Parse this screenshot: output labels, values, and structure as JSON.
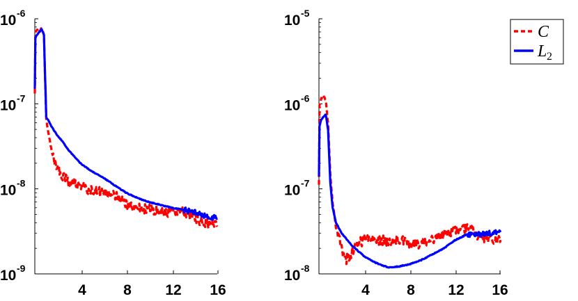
{
  "chart_data": [
    {
      "type": "line",
      "title": "",
      "xlabel": "",
      "ylabel": "",
      "yscale": "log",
      "xlim": [
        0,
        16
      ],
      "ylim": [
        1e-09,
        1e-06
      ],
      "x_ticks": [
        "4",
        "8",
        "12",
        "16"
      ],
      "y_ticks": [
        {
          "base": "10",
          "exp": "-9"
        },
        {
          "base": "10",
          "exp": "-8"
        },
        {
          "base": "10",
          "exp": "-7"
        },
        {
          "base": "10",
          "exp": "-6"
        }
      ],
      "series": [
        {
          "name": "C",
          "color": "#ff0000",
          "style": "dashed",
          "x": [
            0.0,
            0.05,
            0.2,
            0.4,
            0.6,
            0.8,
            1.0,
            1.2,
            1.5,
            2.0,
            2.5,
            3.0,
            4.0,
            5.0,
            6.0,
            7.0,
            8.0,
            9.0,
            10.0,
            11.0,
            12.0,
            13.0,
            14.0,
            15.0,
            16.0
          ],
          "y": [
            1.3e-07,
            6.8e-07,
            7.5e-07,
            7e-07,
            7.8e-07,
            6.5e-07,
            6.5e-08,
            4.5e-08,
            2.7e-08,
            1.7e-08,
            1.4e-08,
            1.25e-08,
            1.1e-08,
            9.5e-09,
            9e-09,
            8.5e-09,
            6.5e-09,
            6e-09,
            5.7e-09,
            5.5e-09,
            5.3e-09,
            5.5e-09,
            4.5e-09,
            4e-09,
            3.6e-09
          ]
        },
        {
          "name": "L2",
          "color": "#0000ff",
          "style": "solid",
          "x": [
            0.0,
            0.05,
            0.2,
            0.4,
            0.6,
            0.8,
            1.0,
            1.2,
            1.5,
            2.0,
            2.5,
            3.0,
            4.0,
            5.0,
            6.0,
            7.0,
            8.0,
            9.0,
            10.0,
            11.0,
            12.0,
            13.0,
            14.0,
            15.0,
            16.0
          ],
          "y": [
            1.5e-07,
            6e-07,
            6.5e-07,
            7e-07,
            7.6e-07,
            6.5e-07,
            7e-08,
            6.3e-08,
            5.3e-08,
            4.2e-08,
            3.5e-08,
            2.8e-08,
            2e-08,
            1.6e-08,
            1.35e-08,
            1.1e-08,
            9e-09,
            7.8e-09,
            7e-09,
            6.5e-09,
            6e-09,
            5.7e-09,
            5.3e-09,
            4.8e-09,
            4.5e-09
          ]
        }
      ]
    },
    {
      "type": "line",
      "title": "",
      "xlabel": "",
      "ylabel": "",
      "yscale": "log",
      "xlim": [
        0,
        16
      ],
      "ylim": [
        1e-08,
        1e-05
      ],
      "x_ticks": [
        "4",
        "8",
        "12",
        "16"
      ],
      "y_ticks": [
        {
          "base": "10",
          "exp": "-8"
        },
        {
          "base": "10",
          "exp": "-7"
        },
        {
          "base": "10",
          "exp": "-6"
        },
        {
          "base": "10",
          "exp": "-5"
        }
      ],
      "legend_position": "top-right",
      "series": [
        {
          "name": "C",
          "color": "#ff0000",
          "style": "dashed",
          "x": [
            0.0,
            0.05,
            0.2,
            0.4,
            0.6,
            0.8,
            1.0,
            1.2,
            1.5,
            2.0,
            2.3,
            2.6,
            3.0,
            3.5,
            4.0,
            5.0,
            6.0,
            7.0,
            7.5,
            8.0,
            9.0,
            10.0,
            11.0,
            12.0,
            13.0,
            13.5,
            14.0,
            15.0,
            16.0
          ],
          "y": [
            1.1e-07,
            9.5e-07,
            1.15e-06,
            1.25e-06,
            1.1e-06,
            6e-07,
            1.5e-07,
            7e-08,
            3.5e-08,
            2e-08,
            1.45e-08,
            1.55e-08,
            1.9e-08,
            2.3e-08,
            2.5e-08,
            2.5e-08,
            2.45e-08,
            2.5e-08,
            2.5e-08,
            2.2e-08,
            2.3e-08,
            2.6e-08,
            2.9e-08,
            3.2e-08,
            3.5e-08,
            3.5e-08,
            2.8e-08,
            2.6e-08,
            2.5e-08
          ]
        },
        {
          "name": "L2",
          "color": "#0000ff",
          "style": "solid",
          "x": [
            0.0,
            0.05,
            0.2,
            0.4,
            0.6,
            0.8,
            1.0,
            1.2,
            1.5,
            2.0,
            2.5,
            3.0,
            4.0,
            5.0,
            6.0,
            6.5,
            7.0,
            8.0,
            9.0,
            10.0,
            11.0,
            12.0,
            13.0,
            14.0,
            15.0,
            16.0
          ],
          "y": [
            1.4e-07,
            5.5e-07,
            6.5e-07,
            7e-07,
            7.5e-07,
            5e-07,
            1.2e-07,
            6e-08,
            4e-08,
            3e-08,
            2.5e-08,
            2.1e-08,
            1.6e-08,
            1.35e-08,
            1.2e-08,
            1.2e-08,
            1.22e-08,
            1.3e-08,
            1.45e-08,
            1.7e-08,
            2e-08,
            2.5e-08,
            2.9e-08,
            2.9e-08,
            3e-08,
            3.1e-08
          ]
        }
      ]
    }
  ],
  "legend": {
    "items": [
      {
        "label": "C",
        "subscript": "",
        "color": "#ff0000",
        "style": "dashed"
      },
      {
        "label": "L",
        "subscript": "2",
        "color": "#0000ff",
        "style": "solid"
      }
    ]
  }
}
